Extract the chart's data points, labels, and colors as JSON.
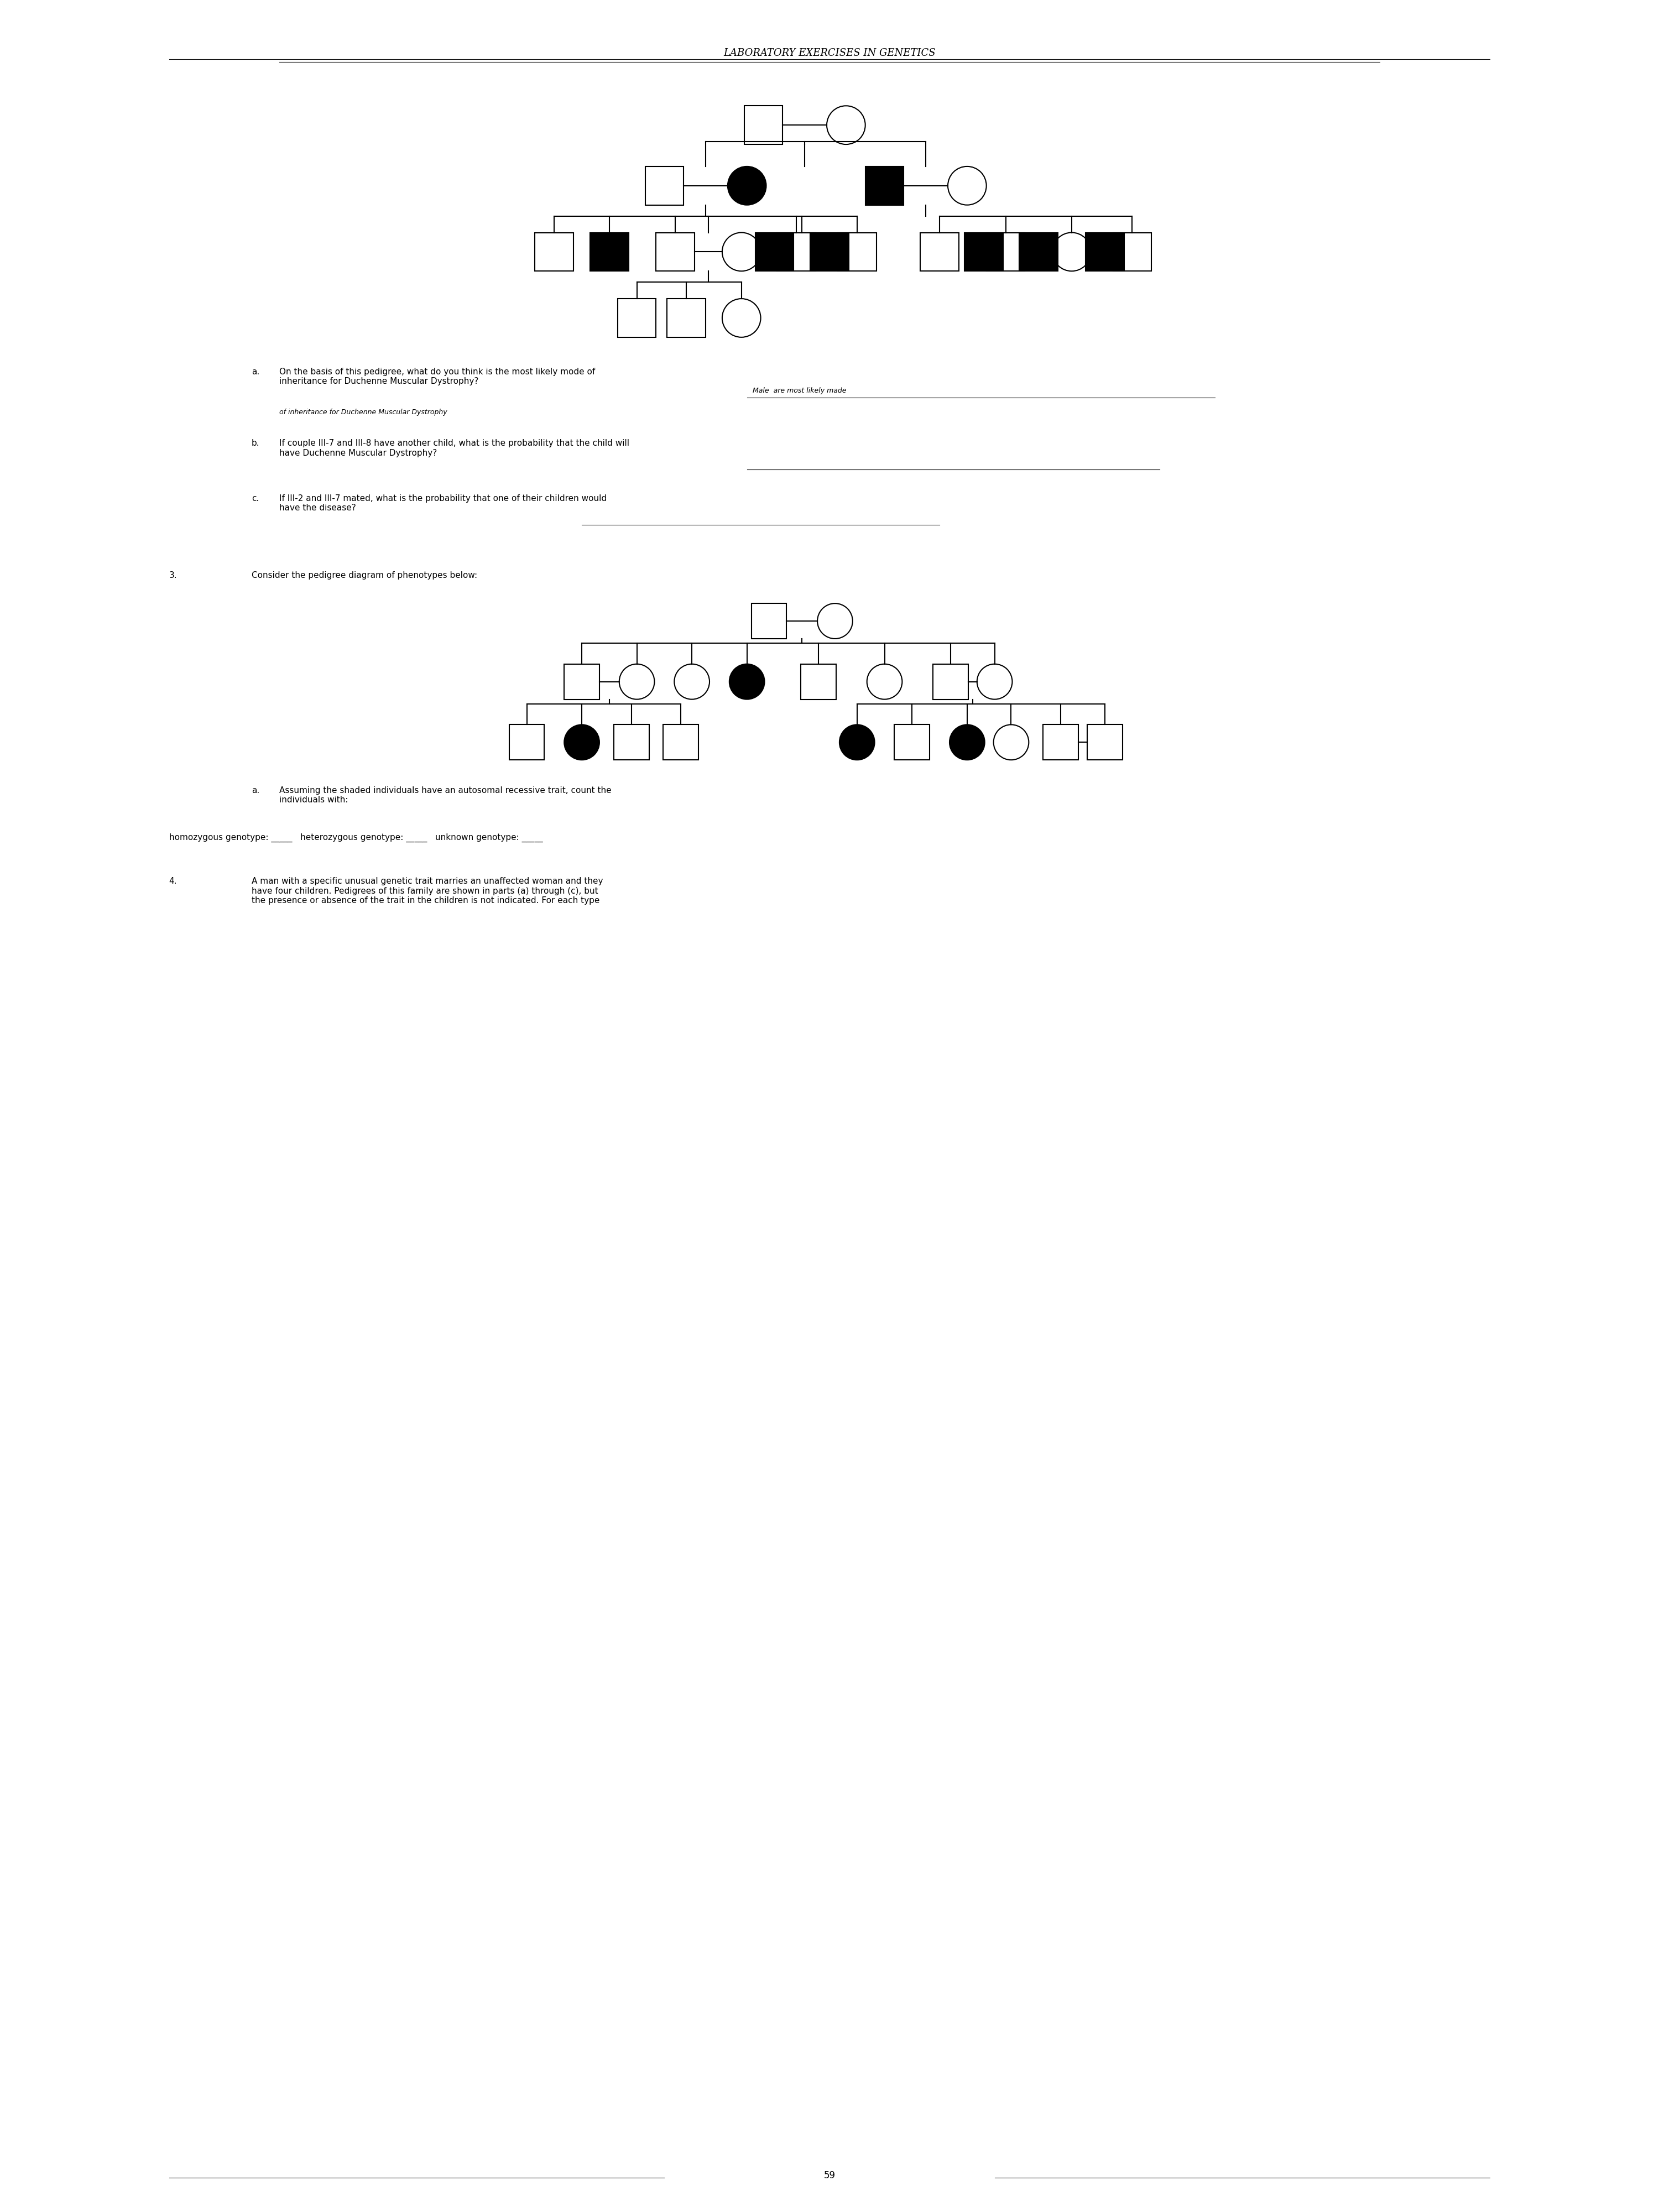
{
  "title": "LABORATORY EXERCISES IN GENETICS",
  "page_number": "59",
  "bg_color": "#ffffff",
  "text_color": "#000000",
  "question2_text": "Consider the pedigree diagram of phenotypes below:",
  "question_a_text": "a.  On the basis of this pedigree, what do you think is the most likely mode of\n     inheritance for Duchenne Muscular Dystrophy?",
  "handwritten_a": "Male  are most likely made\nof inheritance for Duchenne Muscular Dystrophy",
  "question_b_text": "b.  If couple III-7 and III-8 have another child, what is the probability that the child will\n     have Duchenne Muscular Dystrophy?",
  "question_c_text": "c.  If III-2 and III-7 mated, what is the probability that one of their children would\n     have the disease?",
  "question4_text": "4.   A man with a specific unusual genetic trait marries an unaffected woman and they\n      have four children. Pedigrees of this family are shown in parts (a) through (c), but\n      the presence or absence of the trait in the children is not indicated. For each type",
  "question3_a_text": "a.  Assuming the shaded individuals have an autosomal recessive trait, count the\n     individuals with:",
  "homozygous_text": "homozygous genotype: _____   heterozygous genotype: _____   unknown genotype: _____"
}
